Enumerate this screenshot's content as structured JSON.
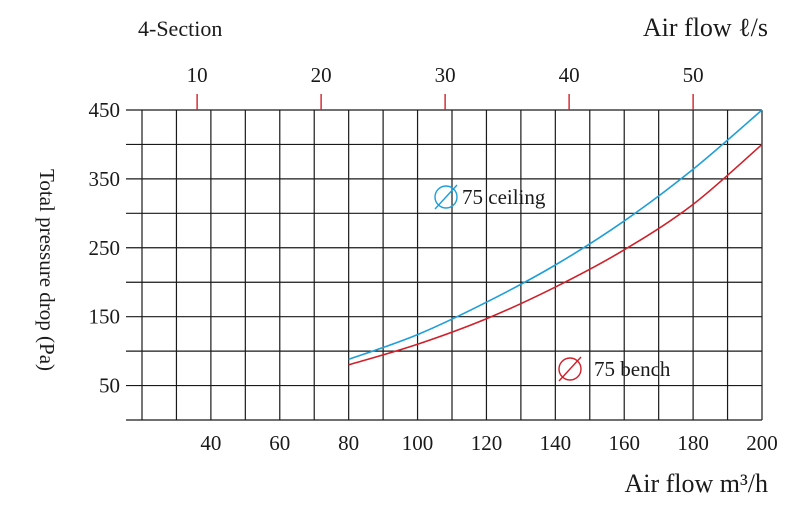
{
  "chart_data": {
    "type": "line",
    "section_label": "4-Section",
    "top_axis": {
      "label": "Air flow ℓ/s",
      "ticks": [
        10,
        20,
        30,
        40,
        50
      ],
      "tick_color": "#d0202a"
    },
    "xlabel": "Air flow m³/h",
    "ylabel": "Total pressure drop (Pa)",
    "xlim": [
      20,
      200
    ],
    "ylim": [
      0,
      450
    ],
    "x_ticks": [
      40,
      60,
      80,
      100,
      120,
      140,
      160,
      180,
      200
    ],
    "y_ticks": [
      50,
      150,
      250,
      350,
      450
    ],
    "grid": true,
    "series": [
      {
        "name": "75 ceiling",
        "color": "#1e9fd8",
        "x": [
          80,
          100,
          120,
          140,
          160,
          180,
          200
        ],
        "y": [
          88,
          124,
          171,
          225,
          289,
          364,
          450
        ]
      },
      {
        "name": "75 bench",
        "color": "#d0202a",
        "x": [
          80,
          100,
          120,
          140,
          160,
          180,
          200
        ],
        "y": [
          80,
          110,
          147,
          193,
          247,
          313,
          400
        ]
      }
    ]
  }
}
